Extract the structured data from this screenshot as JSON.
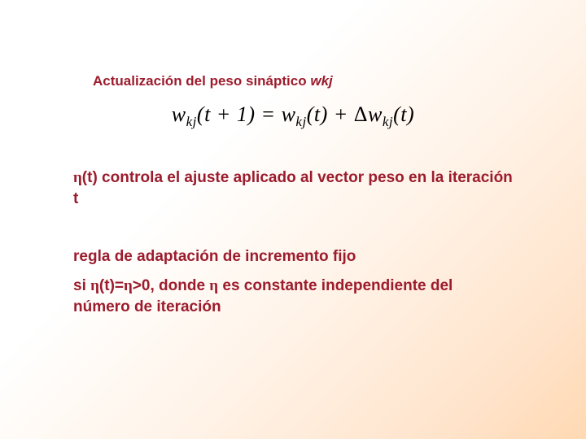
{
  "colors": {
    "text_primary": "#9c1c2d",
    "equation_color": "#000000",
    "bg_start": "#ffffff",
    "bg_end": "#ffd9b3"
  },
  "typography": {
    "body_font": "Arial",
    "equation_font": "Times New Roman",
    "title_fontsize": 17,
    "body_fontsize": 19,
    "equation_fontsize": 26
  },
  "title": {
    "text": "Actualización del peso sináptico ",
    "var": "wkj"
  },
  "equation": {
    "lhs_w": "w",
    "lhs_sub": "kj",
    "lhs_arg": "(t + 1)",
    "eq": " = ",
    "r1_w": "w",
    "r1_sub": "kj",
    "r1_arg": "(t)",
    "plus": " + ",
    "delta": "Δ",
    "r2_w": "w",
    "r2_sub": "kj",
    "r2_arg": "(t)"
  },
  "para1": {
    "eta": "η",
    "t_arg": "(t)",
    "rest": " controla el ajuste aplicado al vector peso en la iteración t"
  },
  "para2": {
    "text": "regla de adaptación de incremento fijo"
  },
  "para3": {
    "pre": "si ",
    "eta1": "η",
    "arg": "(t)=",
    "eta2": "η",
    "gt": ">0",
    "mid": ", donde ",
    "eta3": "η",
    "rest": " es constante independiente del número de iteración"
  }
}
